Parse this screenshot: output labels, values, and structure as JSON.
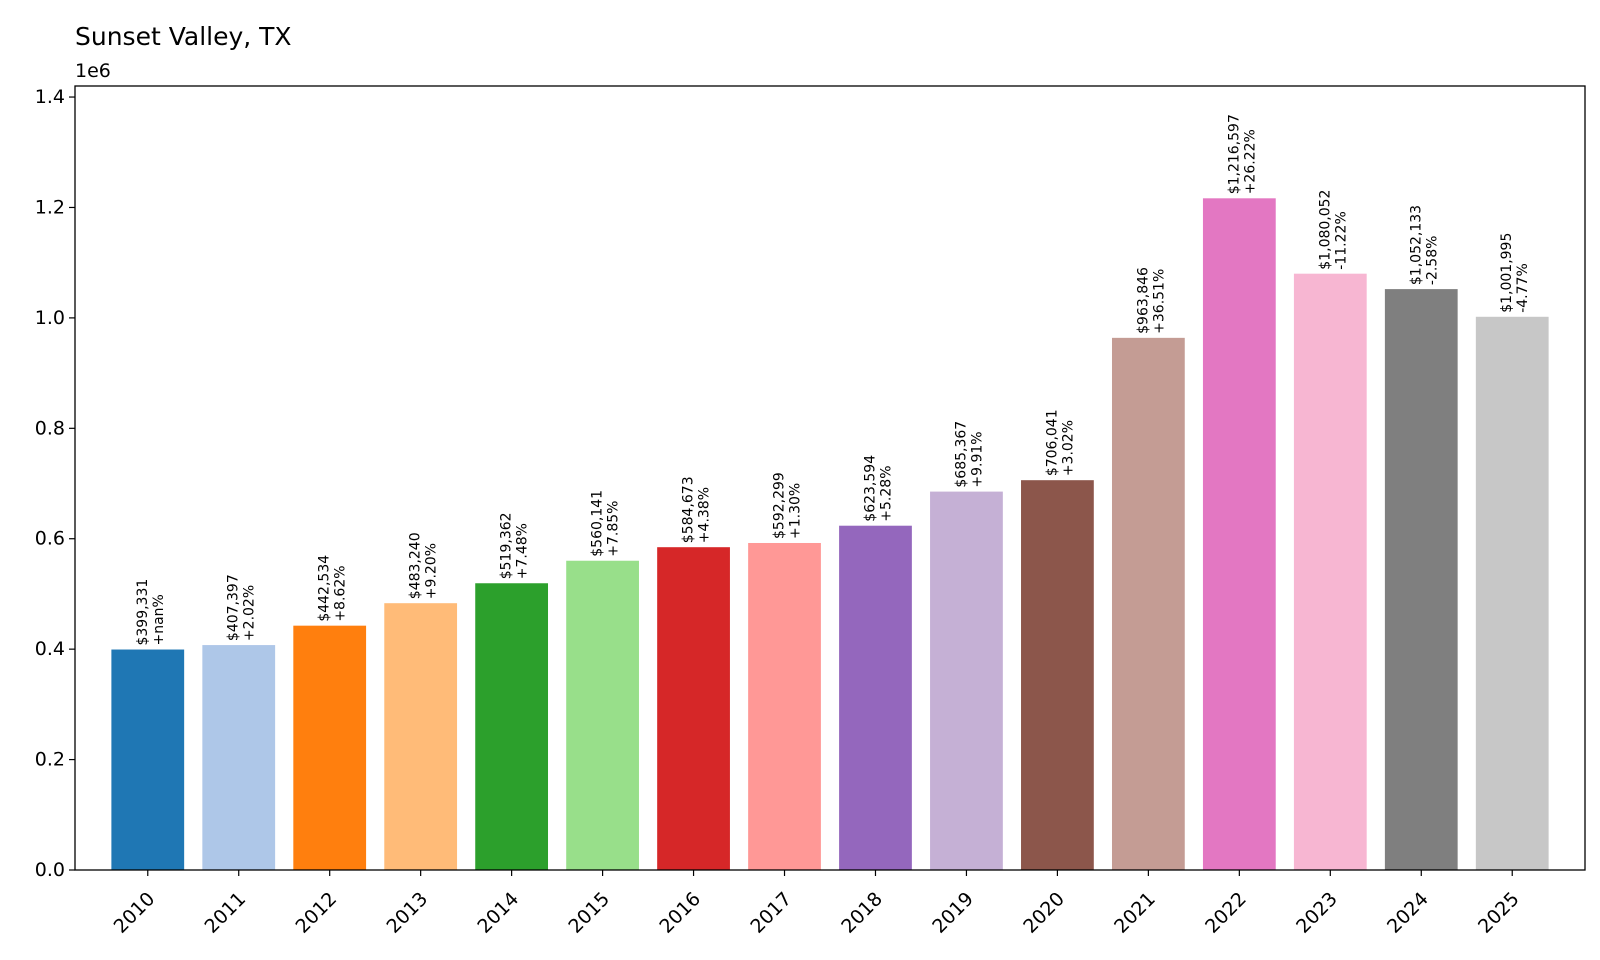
{
  "chart_data": {
    "type": "bar",
    "title": "Sunset Valley, TX",
    "xlabel": "",
    "ylabel": "",
    "y_offset_text": "1e6",
    "ylim": [
      0,
      1.42
    ],
    "y_scale": 1000000,
    "yticks": [
      0.0,
      0.2,
      0.4,
      0.6,
      0.8,
      1.0,
      1.2,
      1.4
    ],
    "ytick_labels": [
      "0.0",
      "0.2",
      "0.4",
      "0.6",
      "0.8",
      "1.0",
      "1.2",
      "1.4"
    ],
    "categories": [
      "2010",
      "2011",
      "2012",
      "2013",
      "2014",
      "2015",
      "2016",
      "2017",
      "2018",
      "2019",
      "2020",
      "2021",
      "2022",
      "2023",
      "2024",
      "2025"
    ],
    "values": [
      399331,
      407397,
      442534,
      483240,
      519362,
      560141,
      584673,
      592299,
      623594,
      685367,
      706041,
      963846,
      1216597,
      1080052,
      1052133,
      1001995
    ],
    "value_labels": [
      "$399,331",
      "$407,397",
      "$442,534",
      "$483,240",
      "$519,362",
      "$560,141",
      "$584,673",
      "$592,299",
      "$623,594",
      "$685,367",
      "$706,041",
      "$963,846",
      "$1,216,597",
      "$1,080,052",
      "$1,052,133",
      "$1,001,995"
    ],
    "change_labels": [
      "+nan%",
      "+2.02%",
      "+8.62%",
      "+9.20%",
      "+7.48%",
      "+7.85%",
      "+4.38%",
      "+1.30%",
      "+5.28%",
      "+9.91%",
      "+3.02%",
      "+36.51%",
      "+26.22%",
      "-11.22%",
      "-2.58%",
      "-4.77%"
    ],
    "colors": [
      "#1f77b4",
      "#aec7e8",
      "#ff7f0e",
      "#ffbb78",
      "#2ca02c",
      "#98df8a",
      "#d62728",
      "#ff9896",
      "#9467bd",
      "#c5b0d5",
      "#8c564b",
      "#c49c94",
      "#e377c2",
      "#f7b6d2",
      "#7f7f7f",
      "#c7c7c7"
    ],
    "grid": false,
    "legend": "none"
  }
}
